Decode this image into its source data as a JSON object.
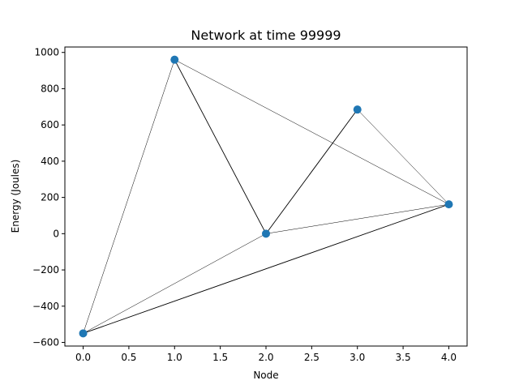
{
  "chart_data": {
    "type": "scatter",
    "title": "Network at time 99999",
    "xlabel": "Node",
    "ylabel": "Energy (Joules)",
    "xlim": [
      -0.2,
      4.2
    ],
    "ylim": [
      -620,
      1030
    ],
    "x_ticks": [
      0.0,
      0.5,
      1.0,
      1.5,
      2.0,
      2.5,
      3.0,
      3.5,
      4.0
    ],
    "x_tick_labels": [
      "0.0",
      "0.5",
      "1.0",
      "1.5",
      "2.0",
      "2.5",
      "3.0",
      "3.5",
      "4.0"
    ],
    "y_ticks": [
      -600,
      -400,
      -200,
      0,
      200,
      400,
      600,
      800,
      1000
    ],
    "y_tick_labels": [
      "−600",
      "−400",
      "−200",
      "0",
      "200",
      "400",
      "600",
      "800",
      "1000"
    ],
    "grid": false,
    "marker_color": "#1f77b4",
    "edge_color": "#000000",
    "nodes": [
      {
        "x": 0,
        "y": -550
      },
      {
        "x": 1,
        "y": 960
      },
      {
        "x": 2,
        "y": 0
      },
      {
        "x": 3,
        "y": 685
      },
      {
        "x": 4,
        "y": 162
      }
    ],
    "edges": [
      {
        "from": 0,
        "to": 1,
        "weight": 0.5
      },
      {
        "from": 0,
        "to": 2,
        "weight": 0.5
      },
      {
        "from": 0,
        "to": 4,
        "weight": 0.9
      },
      {
        "from": 1,
        "to": 2,
        "weight": 0.9
      },
      {
        "from": 1,
        "to": 4,
        "weight": 0.5
      },
      {
        "from": 2,
        "to": 3,
        "weight": 0.9
      },
      {
        "from": 2,
        "to": 4,
        "weight": 0.5
      },
      {
        "from": 3,
        "to": 4,
        "weight": 0.5
      }
    ]
  }
}
